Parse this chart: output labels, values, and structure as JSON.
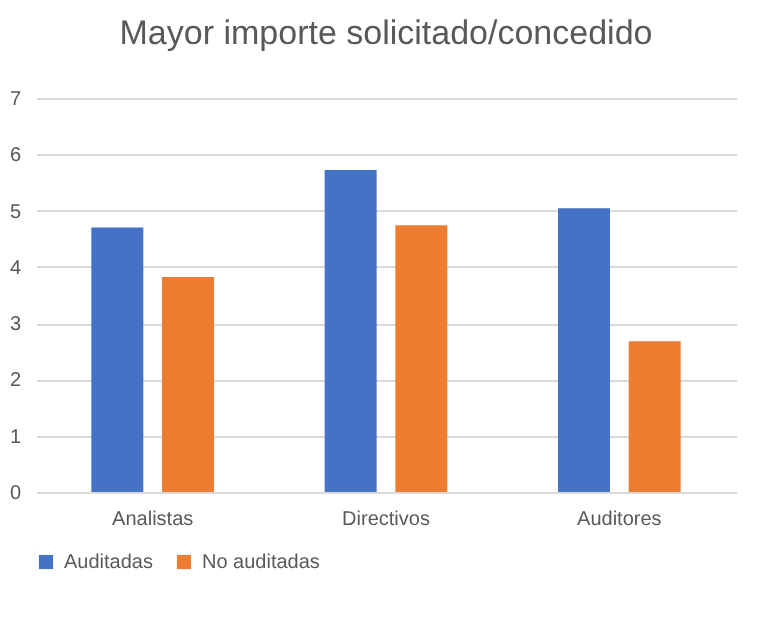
{
  "chart_data": {
    "type": "bar",
    "title": "Mayor importe solicitado/concedido",
    "categories": [
      "Analistas",
      "Directivos",
      "Auditores"
    ],
    "series": [
      {
        "name": "Auditadas",
        "color": "#4472c4",
        "values": [
          4.7,
          5.72,
          5.04
        ]
      },
      {
        "name": "No auditadas",
        "color": "#ed7d31",
        "values": [
          3.82,
          4.74,
          2.68
        ]
      }
    ],
    "ylim": [
      0,
      7
    ],
    "yticks": [
      0,
      1,
      2,
      3,
      4,
      5,
      6,
      7
    ],
    "grid": "y",
    "legend": "bottom"
  }
}
